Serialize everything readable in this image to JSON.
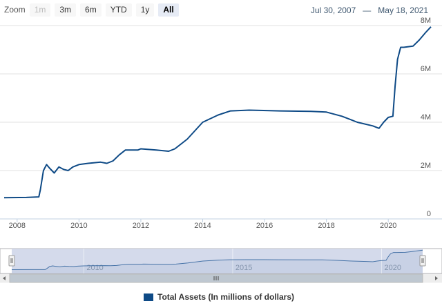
{
  "zoom": {
    "label": "Zoom",
    "buttons": [
      {
        "label": "1m",
        "state": "disabled"
      },
      {
        "label": "3m",
        "state": "normal"
      },
      {
        "label": "6m",
        "state": "normal"
      },
      {
        "label": "YTD",
        "state": "normal"
      },
      {
        "label": "1y",
        "state": "normal"
      },
      {
        "label": "All",
        "state": "active"
      }
    ]
  },
  "range": {
    "from": "Jul 30, 2007",
    "dash": "—",
    "to": "May 18, 2021"
  },
  "colors": {
    "series": "#0e4a86",
    "grid": "#e0e0e0",
    "navigator_mask": "#ccd4e8",
    "navigator_line": "#4572a7"
  },
  "chart_data": {
    "type": "line",
    "title": "",
    "xlabel": "",
    "ylabel": "",
    "x_range": [
      2007.58,
      2021.38
    ],
    "ylim": [
      0,
      8
    ],
    "y_ticks": [
      {
        "value": 0,
        "label": "0"
      },
      {
        "value": 2,
        "label": "2M"
      },
      {
        "value": 4,
        "label": "4M"
      },
      {
        "value": 6,
        "label": "6M"
      },
      {
        "value": 8,
        "label": "8M"
      }
    ],
    "x_ticks": [
      {
        "value": 2008,
        "label": "2008"
      },
      {
        "value": 2010,
        "label": "2010"
      },
      {
        "value": 2012,
        "label": "2012"
      },
      {
        "value": 2014,
        "label": "2014"
      },
      {
        "value": 2016,
        "label": "2016"
      },
      {
        "value": 2018,
        "label": "2018"
      },
      {
        "value": 2020,
        "label": "2020"
      }
    ],
    "navigator_ticks": [
      {
        "value": 2010,
        "label": "2010"
      },
      {
        "value": 2015,
        "label": "2015"
      },
      {
        "value": 2020,
        "label": "2020"
      }
    ],
    "grid": true,
    "legend_position": "bottom-center",
    "series": [
      {
        "name": "Total Assets (In millions of dollars)",
        "points": [
          [
            2007.58,
            0.88
          ],
          [
            2008.3,
            0.89
          ],
          [
            2008.7,
            0.91
          ],
          [
            2008.75,
            1.2
          ],
          [
            2008.85,
            2.0
          ],
          [
            2008.95,
            2.25
          ],
          [
            2009.05,
            2.1
          ],
          [
            2009.2,
            1.9
          ],
          [
            2009.35,
            2.15
          ],
          [
            2009.5,
            2.05
          ],
          [
            2009.65,
            2.0
          ],
          [
            2009.8,
            2.15
          ],
          [
            2010.0,
            2.25
          ],
          [
            2010.3,
            2.3
          ],
          [
            2010.7,
            2.35
          ],
          [
            2010.9,
            2.3
          ],
          [
            2011.1,
            2.4
          ],
          [
            2011.3,
            2.65
          ],
          [
            2011.5,
            2.85
          ],
          [
            2011.9,
            2.85
          ],
          [
            2012.0,
            2.9
          ],
          [
            2012.5,
            2.85
          ],
          [
            2012.9,
            2.8
          ],
          [
            2013.1,
            2.9
          ],
          [
            2013.5,
            3.3
          ],
          [
            2014.0,
            4.0
          ],
          [
            2014.5,
            4.3
          ],
          [
            2014.9,
            4.47
          ],
          [
            2015.5,
            4.5
          ],
          [
            2016.5,
            4.47
          ],
          [
            2017.5,
            4.45
          ],
          [
            2018.0,
            4.42
          ],
          [
            2018.5,
            4.25
          ],
          [
            2019.0,
            4.0
          ],
          [
            2019.5,
            3.85
          ],
          [
            2019.7,
            3.75
          ],
          [
            2019.85,
            4.0
          ],
          [
            2020.0,
            4.2
          ],
          [
            2020.15,
            4.25
          ],
          [
            2020.22,
            5.5
          ],
          [
            2020.3,
            6.6
          ],
          [
            2020.4,
            7.1
          ],
          [
            2020.5,
            7.1
          ],
          [
            2020.8,
            7.15
          ],
          [
            2021.0,
            7.4
          ],
          [
            2021.2,
            7.7
          ],
          [
            2021.38,
            7.95
          ]
        ]
      }
    ]
  }
}
